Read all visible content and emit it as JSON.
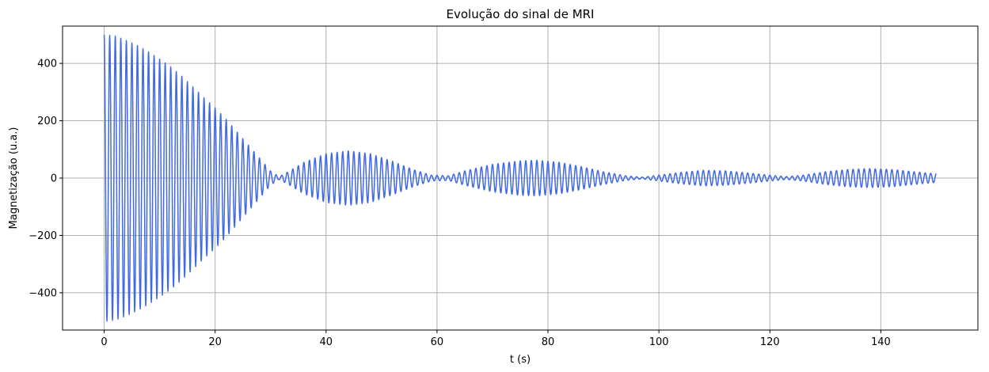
{
  "chart_data": {
    "type": "line",
    "title": "Evolução do sinal de MRI",
    "xlabel": "t (s)",
    "ylabel": "Magnetização (u.a.)",
    "xlim": [
      -7.5,
      157.5
    ],
    "ylim": [
      -530,
      530
    ],
    "xticks": [
      0,
      20,
      40,
      60,
      80,
      100,
      120,
      140
    ],
    "yticks": [
      -400,
      -200,
      0,
      200,
      400
    ],
    "xtick_labels": [
      "0",
      "20",
      "40",
      "60",
      "80",
      "100",
      "120",
      "140"
    ],
    "ytick_labels": [
      "−400",
      "−200",
      "0",
      "200",
      "400"
    ],
    "grid": true,
    "series": [
      {
        "color": "#4169e1",
        "x_range": [
          0,
          150
        ],
        "oscillation_period": 1.0,
        "envelope": {
          "t": [
            0,
            2,
            4,
            6,
            8,
            10,
            12,
            14,
            16,
            18,
            20,
            22,
            24,
            26,
            28,
            30,
            31.5,
            33,
            36,
            40,
            44,
            48,
            52,
            56,
            59,
            62,
            65,
            70,
            75,
            78,
            82,
            86,
            90,
            94,
            97,
            100,
            104,
            108,
            112,
            116,
            120,
            123,
            126,
            130,
            134,
            138,
            142,
            146,
            150
          ],
          "amplitude": [
            500,
            495,
            480,
            462,
            440,
            415,
            388,
            355,
            318,
            280,
            245,
            205,
            160,
            115,
            70,
            25,
            5,
            20,
            55,
            85,
            95,
            85,
            58,
            28,
            10,
            8,
            25,
            48,
            60,
            62,
            55,
            40,
            22,
            8,
            3,
            10,
            20,
            27,
            25,
            18,
            10,
            5,
            10,
            22,
            30,
            33,
            30,
            22,
            15
          ]
        }
      }
    ]
  }
}
